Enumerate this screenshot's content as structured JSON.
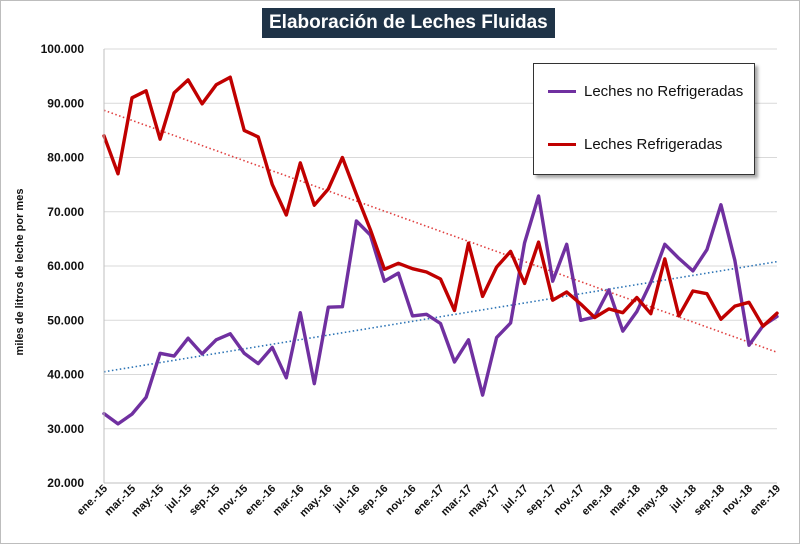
{
  "title": "Elaboración de Leches Fluidas",
  "chart_data": {
    "type": "line",
    "title": "Elaboración de Leches Fluidas",
    "xlabel": "",
    "ylabel": "miles de litros de leche por mes",
    "ylim": [
      20000,
      100000
    ],
    "y_ticks": [
      20000,
      30000,
      40000,
      50000,
      60000,
      70000,
      80000,
      90000,
      100000
    ],
    "y_tick_labels": [
      "20.000",
      "30.000",
      "40.000",
      "50.000",
      "60.000",
      "70.000",
      "80.000",
      "90.000",
      "100.000"
    ],
    "x_tick_labels": [
      "ene.-15",
      "mar.-15",
      "may.-15",
      "jul.-15",
      "sep.-15",
      "nov.-15",
      "ene.-16",
      "mar.-16",
      "may.-16",
      "jul.-16",
      "sep.-16",
      "nov.-16",
      "ene.-17",
      "mar.-17",
      "may.-17",
      "jul.-17",
      "sep.-17",
      "nov.-17",
      "ene.-18",
      "mar.-18",
      "may.-18",
      "jul.-18",
      "sep.-18",
      "nov.-18",
      "ene.-19"
    ],
    "grid": "horizontal",
    "legend_position": "top-right",
    "series": [
      {
        "name": "Leches no Refrigeradas",
        "color": "#7030a0",
        "values": [
          32800,
          30900,
          32700,
          35800,
          43900,
          43400,
          46700,
          43800,
          46400,
          47500,
          43900,
          42000,
          45000,
          39400,
          51400,
          38300,
          52400,
          52500,
          68300,
          65700,
          57200,
          58700,
          50800,
          51100,
          49400,
          42300,
          46400,
          36200,
          46800,
          49500,
          64300,
          72900,
          57200,
          64000,
          50000,
          50600,
          55600,
          48000,
          51600,
          57000,
          64000,
          61400,
          59100,
          63000,
          71300,
          61000,
          45400,
          49000,
          50700
        ],
        "trend": [
          40500,
          60800
        ],
        "trend_color": "#2e75b6"
      },
      {
        "name": "Leches Refrigeradas",
        "color": "#c00000",
        "values": [
          84000,
          77000,
          91000,
          92300,
          83400,
          91900,
          94300,
          89900,
          93400,
          94800,
          85000,
          83800,
          75000,
          69400,
          79000,
          71200,
          74200,
          80000,
          73200,
          66700,
          59400,
          60500,
          59500,
          58900,
          57600,
          51800,
          64200,
          54400,
          59800,
          62700,
          56800,
          64400,
          53700,
          55200,
          53000,
          50500,
          52100,
          51400,
          54200,
          51200,
          61300,
          50800,
          55400,
          54900,
          50200,
          52600,
          53300,
          48900,
          51300
        ],
        "trend": [
          88700,
          44100
        ],
        "trend_color": "#e04040"
      }
    ]
  }
}
